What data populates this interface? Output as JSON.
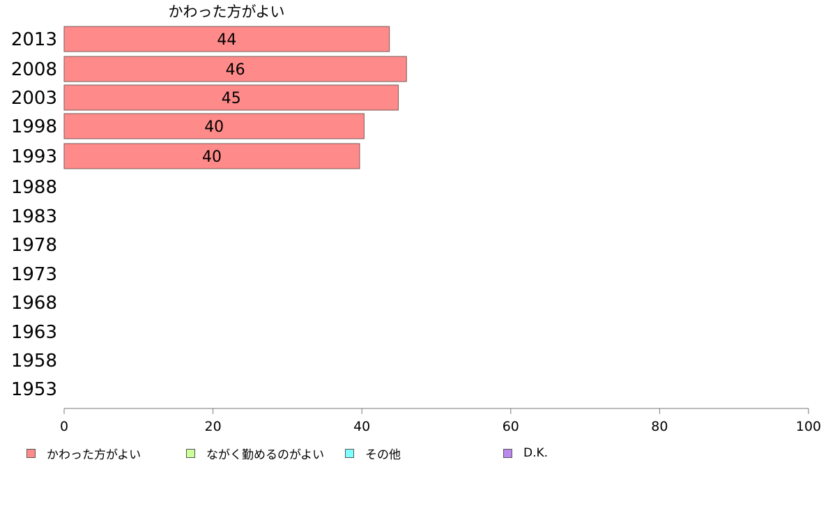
{
  "chart_data": {
    "type": "bar",
    "orientation": "horizontal",
    "title": "かわった方がよい",
    "categories": [
      "2013",
      "2008",
      "2003",
      "1998",
      "1993",
      "1988",
      "1983",
      "1978",
      "1973",
      "1968",
      "1963",
      "1958",
      "1953"
    ],
    "series": [
      {
        "name": "かわった方がよい",
        "color": "#ff8a8a",
        "values": [
          43.7,
          46.0,
          44.9,
          40.3,
          39.7,
          null,
          null,
          null,
          null,
          null,
          null,
          null,
          null
        ],
        "labels": [
          "44",
          "46",
          "45",
          "40",
          "40",
          "",
          "",
          "",
          "",
          "",
          "",
          "",
          ""
        ]
      }
    ],
    "xlim": [
      0,
      100
    ],
    "xticks": [
      "0",
      "20",
      "40",
      "60",
      "80",
      "100"
    ],
    "grid": false,
    "legend_position": "bottom"
  },
  "legend": {
    "items": [
      {
        "label": "かわった方がよい",
        "color": "#ff8a8a"
      },
      {
        "label": "ながく勤めるのがよい",
        "color": "#ccff99"
      },
      {
        "label": "その他",
        "color": "#80ffff"
      },
      {
        "label": "D.K.",
        "color": "#bb88ee"
      }
    ]
  }
}
